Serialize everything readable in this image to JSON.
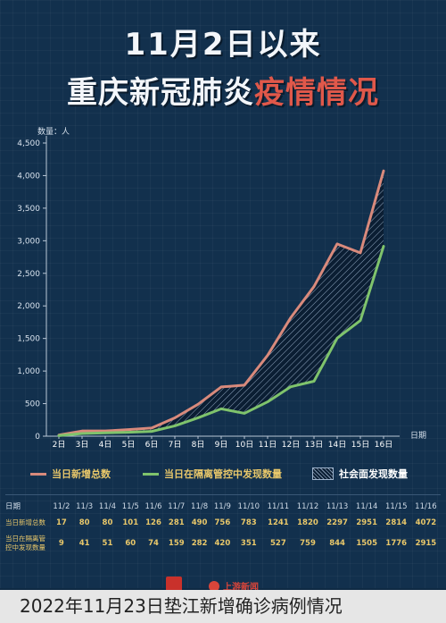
{
  "poster": {
    "title_line1": "11月2日以来",
    "title_line2_white": "重庆新冠肺炎",
    "title_line2_red": "疫情情况"
  },
  "chart_data": {
    "type": "line",
    "ylabel": "数量：人",
    "xlabel": "日期",
    "ylim": [
      0,
      4500
    ],
    "yticks": [
      0,
      500,
      1000,
      1500,
      2000,
      2500,
      3000,
      3500,
      4000,
      4500
    ],
    "ytick_labels": [
      "0",
      "500",
      "1,000",
      "1,500",
      "2,000",
      "2,500",
      "3,000",
      "3,500",
      "4,000",
      "4,500"
    ],
    "x_tick_labels": [
      "2日",
      "3日",
      "4日",
      "5日",
      "6日",
      "7日",
      "8日",
      "9日",
      "10日",
      "11日",
      "12日",
      "13日",
      "14日",
      "15日",
      "16日"
    ],
    "series": [
      {
        "name": "当日新增总数",
        "color": "#d98a7c",
        "values": [
          17,
          80,
          80,
          101,
          126,
          281,
          490,
          756,
          783,
          1241,
          1820,
          2297,
          2951,
          2814,
          4072
        ]
      },
      {
        "name": "当日在隔离管控中发现数量",
        "color": "#7fc36c",
        "values": [
          9,
          41,
          51,
          60,
          74,
          159,
          282,
          420,
          351,
          527,
          759,
          844,
          1505,
          1776,
          2915
        ]
      }
    ],
    "hatch_legend": "社会面发现数量",
    "grid": false
  },
  "table": {
    "date_label": "日期",
    "row1_label": "当日新增总数",
    "row2_label": "当日在隔离管控中发现数量",
    "dates": [
      "11/2",
      "11/3",
      "11/4",
      "11/5",
      "11/6",
      "11/7",
      "11/8",
      "11/9",
      "11/10",
      "11/11",
      "11/12",
      "11/13",
      "11/14",
      "11/15",
      "11/16"
    ],
    "row1": [
      "17",
      "80",
      "80",
      "101",
      "126",
      "281",
      "490",
      "756",
      "783",
      "1241",
      "1820",
      "2297",
      "2951",
      "2814",
      "4072"
    ],
    "row2": [
      "9",
      "41",
      "51",
      "60",
      "74",
      "159",
      "282",
      "420",
      "351",
      "527",
      "759",
      "844",
      "1505",
      "1776",
      "2915"
    ]
  },
  "footer": {
    "logo_text": "上游新闻"
  },
  "caption": "2022年11月23日垫江新增确诊病例情况"
}
